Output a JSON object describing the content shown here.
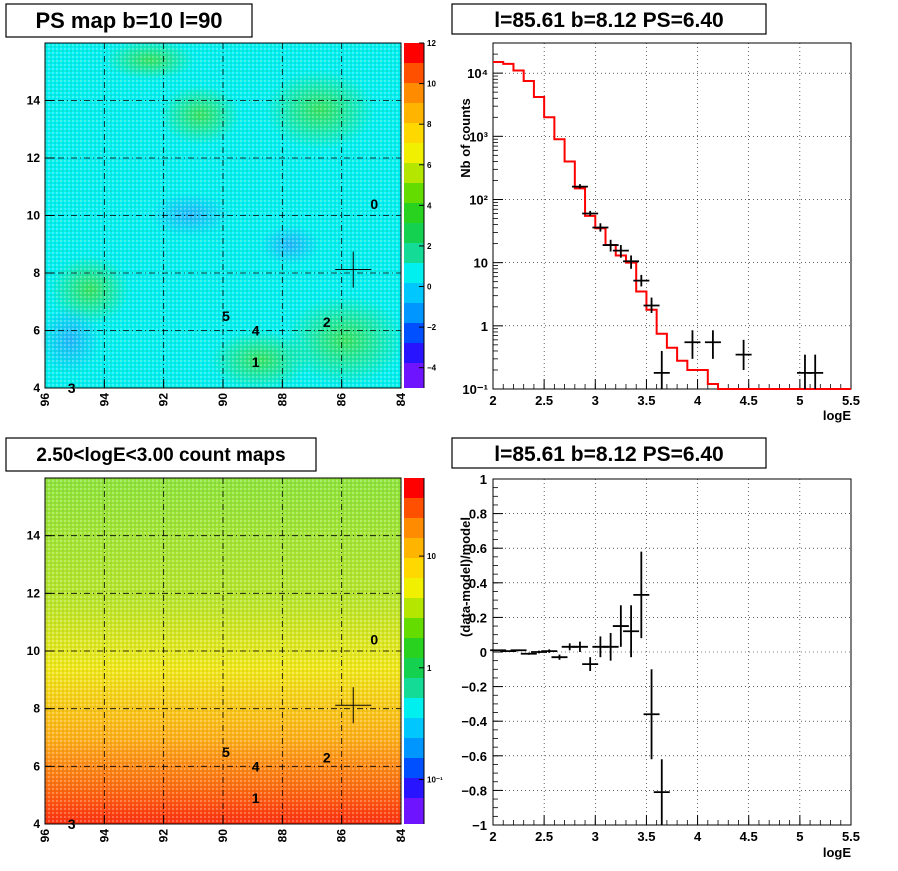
{
  "colors": {
    "model_line": "#ff0000",
    "data_points": "#000000",
    "grid": "#000000",
    "map_background": "#00ffff"
  },
  "chart_data": [
    {
      "type": "heatmap",
      "title": "PS map b=10 l=90",
      "x_ticks": [
        "96",
        "94",
        "92",
        "90",
        "88",
        "86",
        "84"
      ],
      "y_ticks": [
        "4",
        "6",
        "8",
        "10",
        "12",
        "14"
      ],
      "xlim": [
        96,
        84
      ],
      "ylim": [
        4,
        16
      ],
      "colorbar": {
        "ticks": [
          "12",
          "10",
          "8",
          "6",
          "4",
          "2",
          "0",
          "−2",
          "−4"
        ],
        "range": [
          -5,
          12
        ],
        "scale": "linear"
      },
      "source_labels": [
        {
          "text": "0",
          "l": 84.9,
          "b": 10.4
        },
        {
          "text": "1",
          "l": 88.9,
          "b": 4.9
        },
        {
          "text": "2",
          "l": 86.5,
          "b": 6.3
        },
        {
          "text": "3",
          "l": 95.1,
          "b": 4.0
        },
        {
          "text": "4",
          "l": 88.9,
          "b": 6.0
        },
        {
          "text": "5",
          "l": 89.9,
          "b": 6.5
        }
      ],
      "marker": {
        "l": 85.61,
        "b": 8.12
      },
      "grid": true
    },
    {
      "type": "line",
      "title": "l=85.61 b=8.12 PS=6.40",
      "xlabel": "logE",
      "ylabel": "Nb of counts",
      "x_ticks": [
        "2",
        "2.5",
        "3",
        "3.5",
        "4",
        "4.5",
        "5",
        "5.5"
      ],
      "y_ticks": [
        "10⁻¹",
        "1",
        "10",
        "10²",
        "10³",
        "10⁴"
      ],
      "xlim": [
        2,
        5.5
      ],
      "ylim": [
        0.1,
        30000
      ],
      "yscale": "log",
      "grid": true,
      "model_step_edges": [
        2.0,
        2.1,
        2.2,
        2.3,
        2.4,
        2.5,
        2.6,
        2.7,
        2.8,
        2.9,
        3.0,
        3.1,
        3.2,
        3.3,
        3.4,
        3.5,
        3.6,
        3.7,
        3.8,
        3.9,
        4.0,
        4.1,
        4.2,
        4.3,
        4.4,
        5.5
      ],
      "model_step_values": [
        15000,
        14000,
        11000,
        7500,
        4200,
        2000,
        900,
        400,
        150,
        55,
        35,
        19,
        13,
        10,
        3.5,
        1.8,
        0.75,
        0.45,
        0.28,
        0.2,
        0.2,
        0.12,
        0.1,
        0.1,
        0.1
      ],
      "data_points": [
        {
          "x": 2.85,
          "y": 160,
          "ylo": 150,
          "yhi": 175
        },
        {
          "x": 2.95,
          "y": 60,
          "ylo": 55,
          "yhi": 66
        },
        {
          "x": 3.05,
          "y": 36,
          "ylo": 31,
          "yhi": 42
        },
        {
          "x": 3.15,
          "y": 19,
          "ylo": 15,
          "yhi": 23
        },
        {
          "x": 3.25,
          "y": 15.5,
          "ylo": 12,
          "yhi": 19
        },
        {
          "x": 3.35,
          "y": 10.5,
          "ylo": 8,
          "yhi": 13
        },
        {
          "x": 3.45,
          "y": 5.2,
          "ylo": 4.2,
          "yhi": 6.4
        },
        {
          "x": 3.55,
          "y": 2.1,
          "ylo": 1.6,
          "yhi": 2.8
        },
        {
          "x": 3.65,
          "y": 0.18,
          "ylo": 0.1,
          "yhi": 0.4
        },
        {
          "x": 3.95,
          "y": 0.55,
          "ylo": 0.3,
          "yhi": 0.85
        },
        {
          "x": 4.15,
          "y": 0.55,
          "ylo": 0.3,
          "yhi": 0.85
        },
        {
          "x": 4.45,
          "y": 0.35,
          "ylo": 0.2,
          "yhi": 0.6
        },
        {
          "x": 5.05,
          "y": 0.18,
          "ylo": 0.1,
          "yhi": 0.35
        },
        {
          "x": 5.15,
          "y": 0.18,
          "ylo": 0.1,
          "yhi": 0.35
        }
      ]
    },
    {
      "type": "heatmap",
      "title": "2.50<logE<3.00 count maps",
      "x_ticks": [
        "96",
        "94",
        "92",
        "90",
        "88",
        "86",
        "84"
      ],
      "y_ticks": [
        "4",
        "6",
        "8",
        "10",
        "12",
        "14"
      ],
      "xlim": [
        96,
        84
      ],
      "ylim": [
        4,
        16
      ],
      "colorbar": {
        "ticks": [
          "10",
          "1",
          "10⁻¹"
        ],
        "range": [
          0.04,
          50
        ],
        "scale": "log"
      },
      "source_labels": [
        {
          "text": "0",
          "l": 84.9,
          "b": 10.4
        },
        {
          "text": "1",
          "l": 88.9,
          "b": 4.9
        },
        {
          "text": "2",
          "l": 86.5,
          "b": 6.3
        },
        {
          "text": "3",
          "l": 95.1,
          "b": 4.0
        },
        {
          "text": "4",
          "l": 88.9,
          "b": 6.0
        },
        {
          "text": "5",
          "l": 89.9,
          "b": 6.5
        }
      ],
      "marker": {
        "l": 85.61,
        "b": 8.12
      },
      "grid": true
    },
    {
      "type": "scatter",
      "title": "l=85.61 b=8.12 PS=6.40",
      "xlabel": "logE",
      "ylabel": "(data-model)/model",
      "x_ticks": [
        "2",
        "2.5",
        "3",
        "3.5",
        "4",
        "4.5",
        "5",
        "5.5"
      ],
      "y_ticks": [
        "1",
        "0.8",
        "0.6",
        "0.4",
        "0.2",
        "0",
        "−0.2",
        "−0.4",
        "−0.6",
        "−0.8",
        "−1"
      ],
      "xlim": [
        2,
        5.5
      ],
      "ylim": [
        -1,
        1
      ],
      "grid": true,
      "data_points": [
        {
          "x": 2.05,
          "y": 0.01,
          "err": 0.004
        },
        {
          "x": 2.15,
          "y": 0.005,
          "err": 0.004
        },
        {
          "x": 2.25,
          "y": 0.01,
          "err": 0.005
        },
        {
          "x": 2.35,
          "y": -0.01,
          "err": 0.006
        },
        {
          "x": 2.45,
          "y": 0.0,
          "err": 0.008
        },
        {
          "x": 2.55,
          "y": 0.005,
          "err": 0.01
        },
        {
          "x": 2.65,
          "y": -0.03,
          "err": 0.015
        },
        {
          "x": 2.75,
          "y": 0.03,
          "err": 0.02
        },
        {
          "x": 2.85,
          "y": 0.03,
          "err": 0.03
        },
        {
          "x": 2.95,
          "y": -0.07,
          "err": 0.04
        },
        {
          "x": 3.05,
          "y": 0.03,
          "err": 0.06
        },
        {
          "x": 3.15,
          "y": 0.03,
          "err": 0.08
        },
        {
          "x": 3.25,
          "y": 0.15,
          "err": 0.12
        },
        {
          "x": 3.35,
          "y": 0.12,
          "err": 0.15
        },
        {
          "x": 3.45,
          "y": 0.33,
          "err": 0.25
        },
        {
          "x": 3.55,
          "y": -0.36,
          "err": 0.26
        },
        {
          "x": 3.65,
          "y": -0.81,
          "err": 0.19
        }
      ]
    }
  ]
}
